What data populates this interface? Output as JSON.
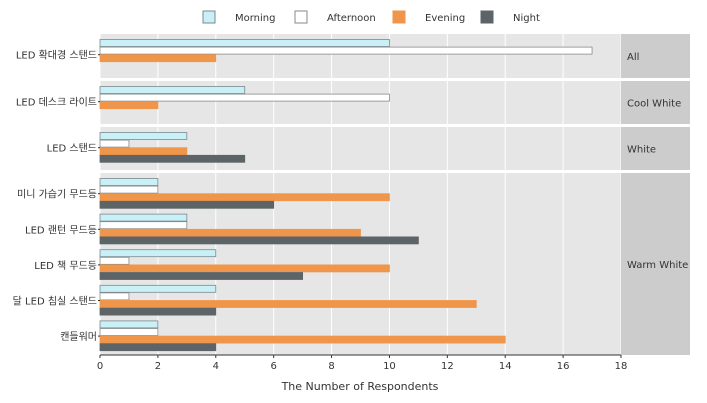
{
  "chart_data": {
    "type": "bar",
    "orientation": "horizontal",
    "xlabel": "The Number of Respondents",
    "xlim": [
      0,
      18
    ],
    "xticks": [
      0,
      2,
      4,
      6,
      8,
      10,
      12,
      14,
      16,
      18
    ],
    "legend_position": "top",
    "grid": true,
    "series": [
      {
        "name": "Morning",
        "color": "#c9eff7",
        "stroke": "#7a8a90"
      },
      {
        "name": "Afternoon",
        "color": "#ffffff",
        "stroke": "#8a8a8a"
      },
      {
        "name": "Evening",
        "color": "#f0964a",
        "stroke": "#f0964a"
      },
      {
        "name": "Night",
        "color": "#5d6468",
        "stroke": "#5d6468"
      }
    ],
    "facets": [
      {
        "label": "All",
        "categories": [
          {
            "name": "LED 확대경 스탠드",
            "values": {
              "Morning": 10,
              "Afternoon": 17,
              "Evening": 4
            }
          }
        ]
      },
      {
        "label": "Cool White",
        "categories": [
          {
            "name": "LED 데스크 라이트",
            "values": {
              "Morning": 5,
              "Afternoon": 10,
              "Evening": 2
            }
          }
        ]
      },
      {
        "label": "White",
        "categories": [
          {
            "name": "LED 스탠드",
            "values": {
              "Morning": 3,
              "Afternoon": 1,
              "Evening": 3,
              "Night": 5
            }
          }
        ]
      },
      {
        "label": "Warm White",
        "categories": [
          {
            "name": "미니 가습기 무드등",
            "values": {
              "Morning": 2,
              "Afternoon": 2,
              "Evening": 10,
              "Night": 6
            }
          },
          {
            "name": "LED 랜턴 무드등",
            "values": {
              "Morning": 3,
              "Afternoon": 3,
              "Evening": 9,
              "Night": 11
            }
          },
          {
            "name": "LED 책 무드등",
            "values": {
              "Morning": 4,
              "Afternoon": 1,
              "Evening": 10,
              "Night": 7
            }
          },
          {
            "name": "달 LED 침실 스탠드",
            "values": {
              "Morning": 4,
              "Afternoon": 1,
              "Evening": 13,
              "Night": 4
            }
          },
          {
            "name": "캔들워머",
            "values": {
              "Morning": 2,
              "Afternoon": 2,
              "Evening": 14,
              "Night": 4
            }
          }
        ]
      }
    ]
  }
}
